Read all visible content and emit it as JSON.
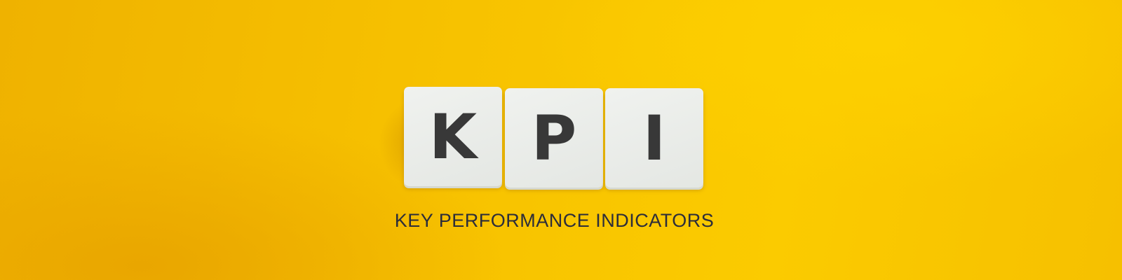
{
  "tiles": [
    {
      "letter": "K"
    },
    {
      "letter": "P"
    },
    {
      "letter": "I"
    }
  ],
  "subtitle": "KEY PERFORMANCE INDICATORS",
  "colors": {
    "background": "#f7c200",
    "tile": "#e8ebe7",
    "letter": "#383838",
    "subtitle": "#2c2d3a"
  }
}
